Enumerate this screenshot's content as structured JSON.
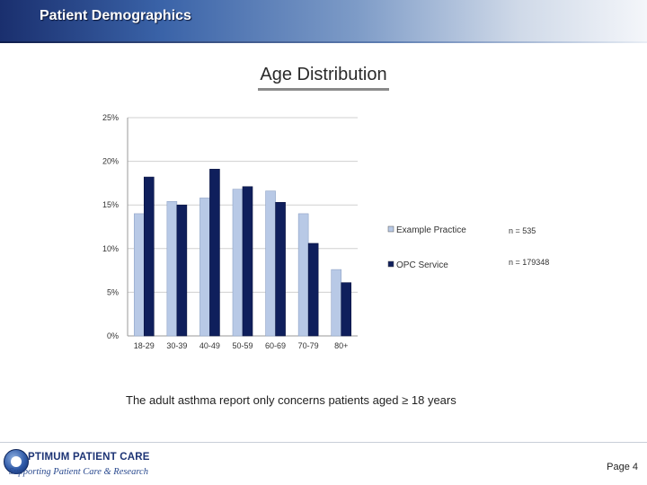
{
  "header": {
    "title": "Patient Demographics",
    "gradient": [
      "#1a2f6e",
      "#3a63a8",
      "#cfd9e8",
      "#f4f6fa"
    ]
  },
  "slide": {
    "title": "Age Distribution"
  },
  "chart_data": {
    "type": "bar",
    "title": "",
    "xlabel": "",
    "ylabel": "",
    "ylim": [
      0,
      25
    ],
    "y_ticks": [
      "0%",
      "5%",
      "10%",
      "15%",
      "20%",
      "25%"
    ],
    "grid": true,
    "legend_position": "right",
    "categories": [
      "18-29",
      "30-39",
      "40-49",
      "50-59",
      "60-69",
      "70-79",
      "80+"
    ],
    "series": [
      {
        "name": "Example Practice",
        "color": "#b8c9e6",
        "values": [
          14.0,
          15.4,
          15.8,
          16.8,
          16.6,
          14.0,
          7.6
        ]
      },
      {
        "name": "OPC Service",
        "color": "#0f1f5c",
        "values": [
          18.2,
          15.0,
          19.1,
          17.1,
          15.3,
          10.6,
          6.1
        ]
      }
    ],
    "annotations": [
      "n = 535",
      "n = 179348"
    ]
  },
  "footnote": "The adult asthma report only concerns patients aged ≥ 18 years",
  "footer": {
    "logo_name": "PTIMUM PATIENT CARE",
    "logo_tagline": "Supporting Patient Care & Research",
    "page_label": "Page 4"
  }
}
